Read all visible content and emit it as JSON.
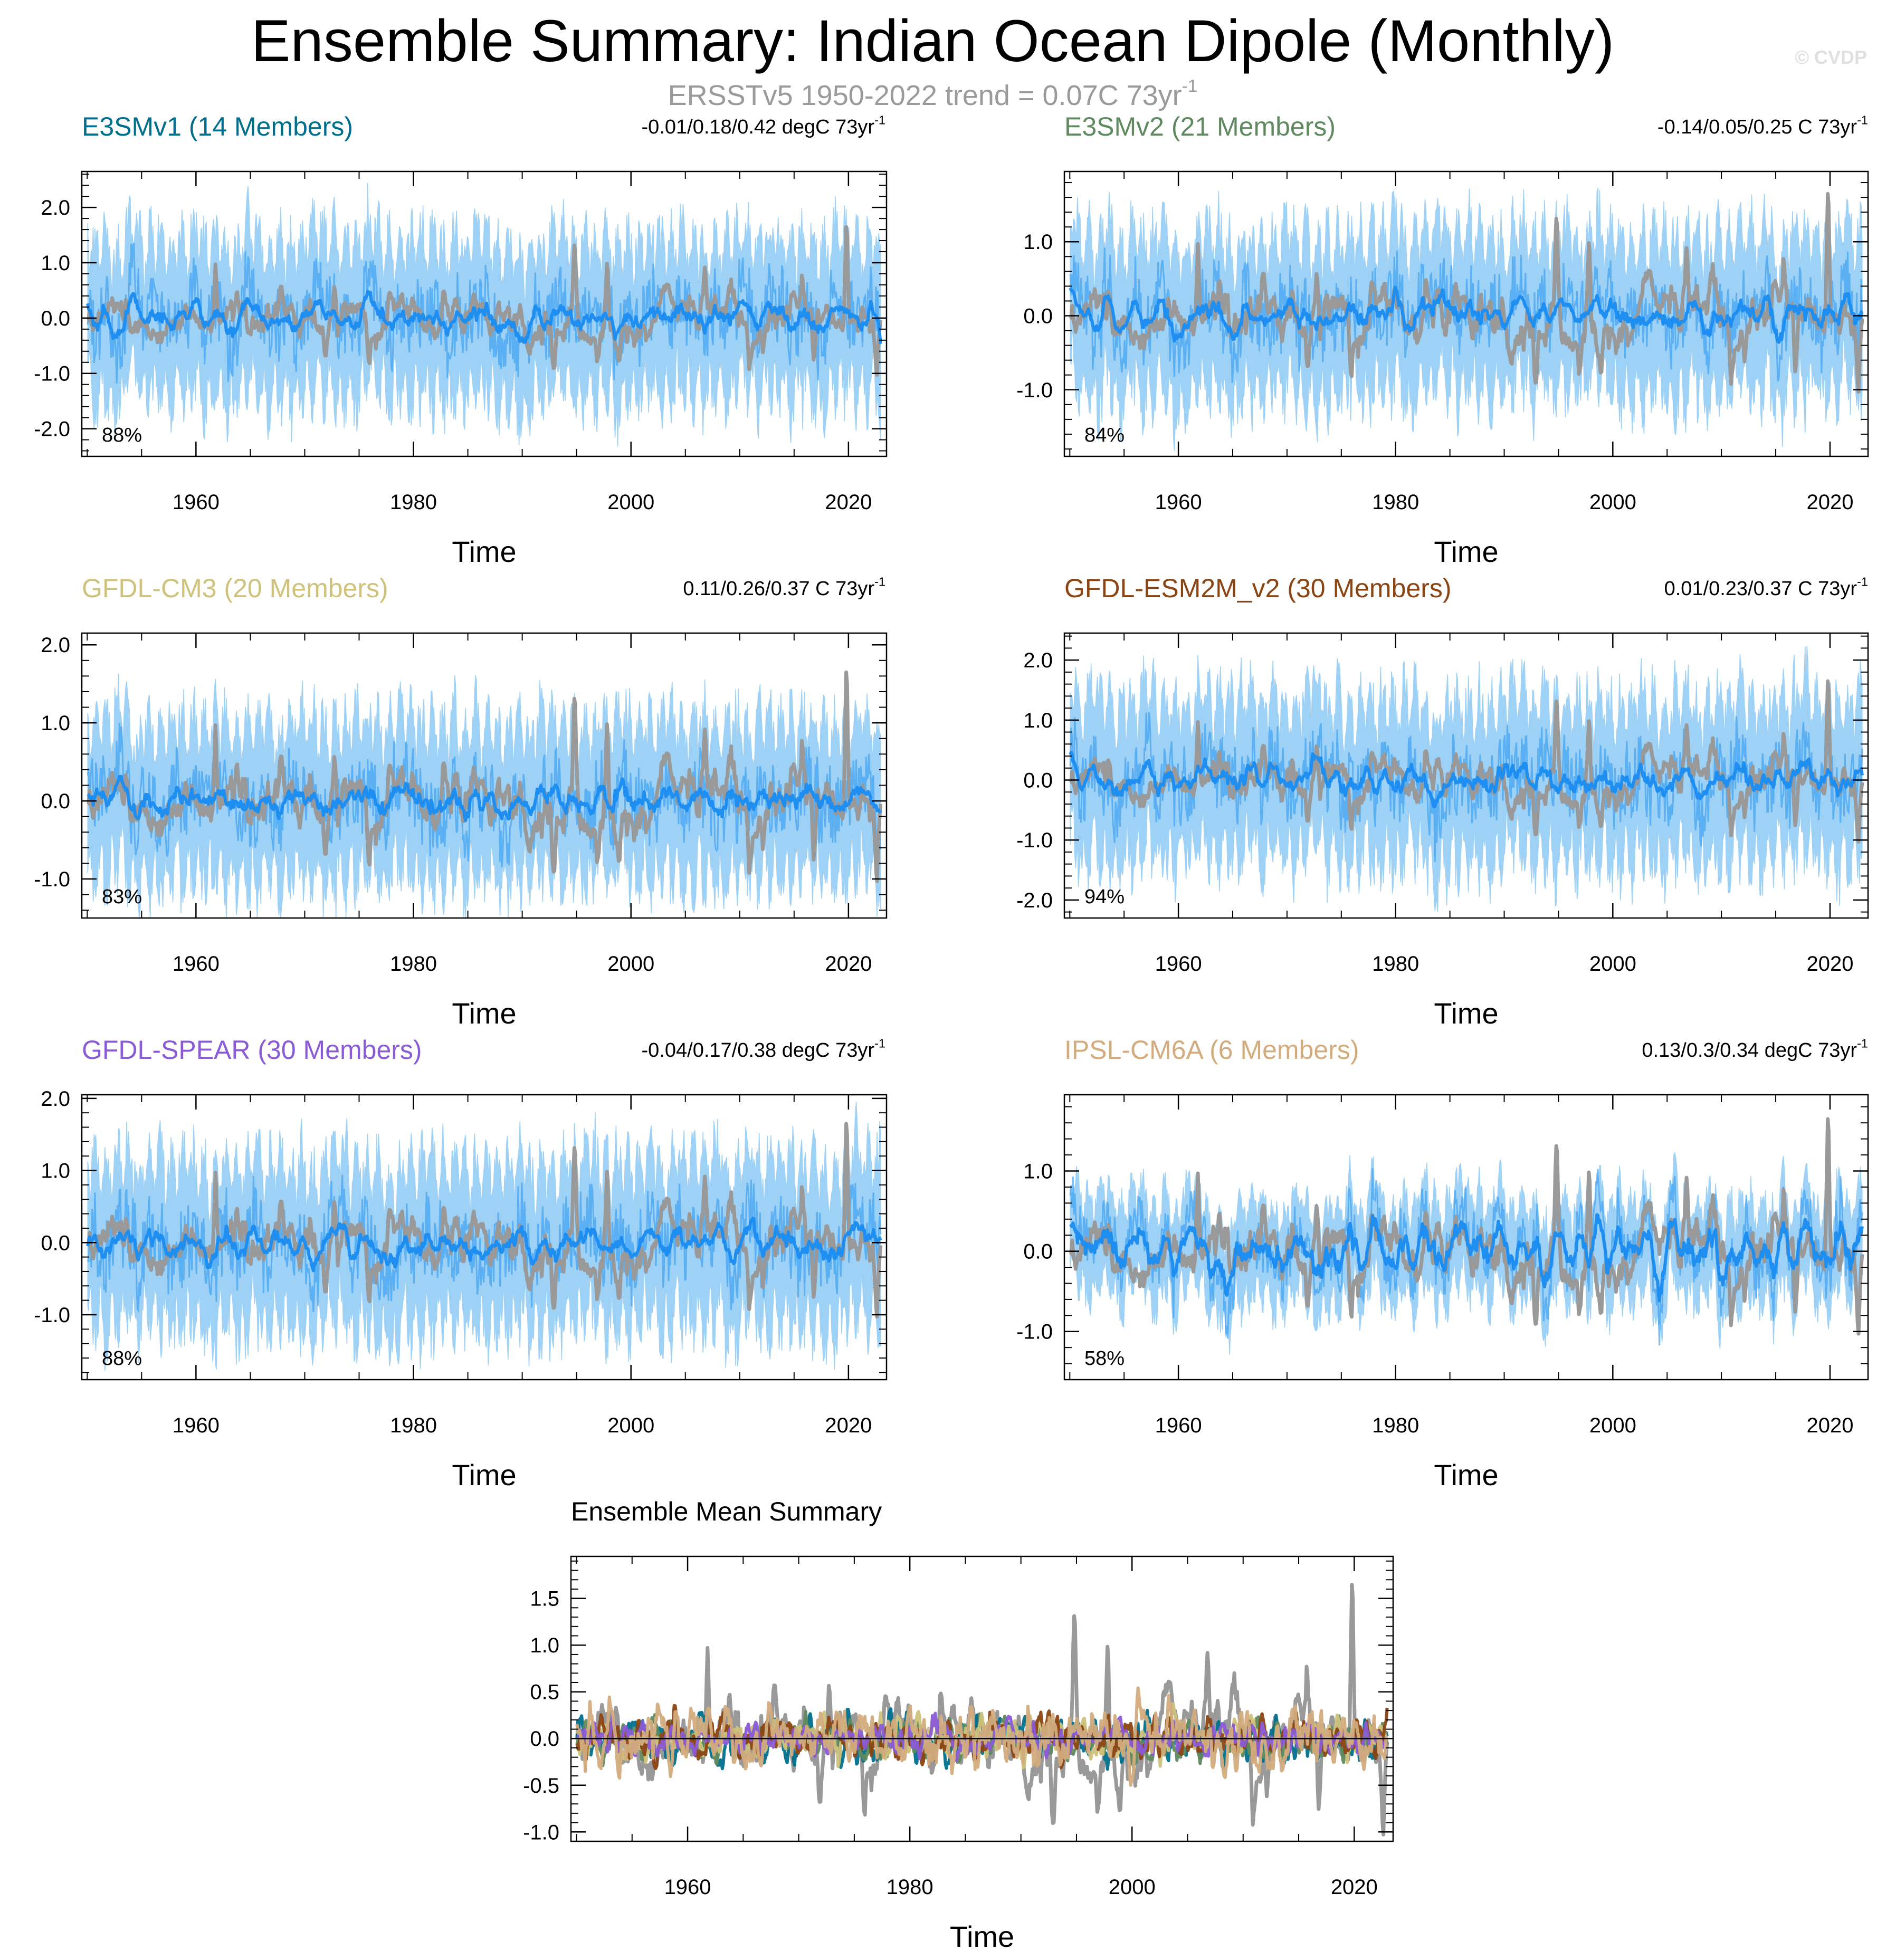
{
  "title": "Ensemble Summary: Indian Ocean Dipole (Monthly)",
  "subtitle": {
    "text": "ERSSTv5 1950-2022 trend = 0.07C 73yr",
    "superscript": "-1"
  },
  "watermark": "© CVDP",
  "colors": {
    "observations": "#999999",
    "ensemble_mean": "#1f8ef1",
    "ensemble_spread": "#8ec9f5",
    "e3smv1": "#006f8d",
    "e3smv2": "#5f8a5f",
    "gfdl_cm3": "#cfc27c",
    "gfdl_esm2m_v2": "#8b4513",
    "gfdl_spear": "#8a5bd6",
    "ipsl_cm6a": "#d2ac7d"
  },
  "chart_data": [
    {
      "type": "line",
      "id": "e3smv1",
      "title": "E3SMv1 (14 Members)",
      "title_color": "#006f8d",
      "trend_label": "-0.01/0.18/0.42 degC 73yr",
      "trend_sup": "-1",
      "xlabel": "Time",
      "ylabel": "",
      "xlim": [
        1949.5,
        2023.5
      ],
      "ylim": [
        -2.5,
        2.65
      ],
      "xticks": [
        1960,
        1980,
        2000,
        2020
      ],
      "yticks": [
        -2.0,
        -1.0,
        0.0,
        1.0,
        2.0
      ],
      "ytick_labels": [
        "-2.0",
        "-1.0",
        "0.0",
        "1.0",
        "2.0"
      ],
      "percent_label": "88%",
      "spread_amplitude": 2.1,
      "mean_amplitude": 0.3,
      "series": [
        {
          "name": "ERSSTv5 observations",
          "color": "#999999",
          "role": "obs"
        },
        {
          "name": "Ensemble spread",
          "color": "#8ec9f5",
          "role": "spread"
        },
        {
          "name": "Ensemble mean",
          "color": "#1f8ef1",
          "role": "mean"
        }
      ]
    },
    {
      "type": "line",
      "id": "e3smv2",
      "title": "E3SMv2 (21 Members)",
      "title_color": "#5f8a5f",
      "trend_label": "-0.14/0.05/0.25 C 73yr",
      "trend_sup": "-1",
      "xlabel": "Time",
      "ylabel": "",
      "xlim": [
        1949.5,
        2023.5
      ],
      "ylim": [
        -1.9,
        1.95
      ],
      "xticks": [
        1960,
        1980,
        2000,
        2020
      ],
      "yticks": [
        -1.0,
        0.0,
        1.0
      ],
      "ytick_labels": [
        "-1.0",
        "0.0",
        "1.0"
      ],
      "percent_label": "84%",
      "spread_amplitude": 1.6,
      "mean_amplitude": 0.25,
      "series": [
        {
          "name": "ERSSTv5 observations",
          "color": "#999999",
          "role": "obs"
        },
        {
          "name": "Ensemble spread",
          "color": "#8ec9f5",
          "role": "spread"
        },
        {
          "name": "Ensemble mean",
          "color": "#1f8ef1",
          "role": "mean"
        }
      ]
    },
    {
      "type": "line",
      "id": "gfdl_cm3",
      "title": "GFDL-CM3 (20 Members)",
      "title_color": "#cfc27c",
      "trend_label": "0.11/0.26/0.37 C 73yr",
      "trend_sup": "-1",
      "xlabel": "Time",
      "ylabel": "",
      "xlim": [
        1949.5,
        2023.5
      ],
      "ylim": [
        -1.5,
        2.15
      ],
      "xticks": [
        1960,
        1980,
        2000,
        2020
      ],
      "yticks": [
        -1.0,
        0.0,
        1.0,
        2.0
      ],
      "ytick_labels": [
        "-1.0",
        "0.0",
        "1.0",
        "2.0"
      ],
      "percent_label": "83%",
      "spread_amplitude": 1.5,
      "mean_amplitude": 0.25,
      "series": [
        {
          "name": "ERSSTv5 observations",
          "color": "#999999",
          "role": "obs"
        },
        {
          "name": "Ensemble spread",
          "color": "#8ec9f5",
          "role": "spread"
        },
        {
          "name": "Ensemble mean",
          "color": "#1f8ef1",
          "role": "mean"
        }
      ]
    },
    {
      "type": "line",
      "id": "gfdl_esm2m_v2",
      "title": "GFDL-ESM2M_v2 (30 Members)",
      "title_color": "#8b4513",
      "trend_label": "0.01/0.23/0.37 C 73yr",
      "trend_sup": "-1",
      "xlabel": "Time",
      "ylabel": "",
      "xlim": [
        1949.5,
        2023.5
      ],
      "ylim": [
        -2.3,
        2.45
      ],
      "xticks": [
        1960,
        1980,
        2000,
        2020
      ],
      "yticks": [
        -2.0,
        -1.0,
        0.0,
        1.0,
        2.0
      ],
      "ytick_labels": [
        "-2.0",
        "-1.0",
        "0.0",
        "1.0",
        "2.0"
      ],
      "percent_label": "94%",
      "spread_amplitude": 2.0,
      "mean_amplitude": 0.3,
      "series": [
        {
          "name": "ERSSTv5 observations",
          "color": "#999999",
          "role": "obs"
        },
        {
          "name": "Ensemble spread",
          "color": "#8ec9f5",
          "role": "spread"
        },
        {
          "name": "Ensemble mean",
          "color": "#1f8ef1",
          "role": "mean"
        }
      ]
    },
    {
      "type": "line",
      "id": "gfdl_spear",
      "title": "GFDL-SPEAR (30 Members)",
      "title_color": "#8a5bd6",
      "trend_label": "-0.04/0.17/0.38 degC 73yr",
      "trend_sup": "-1",
      "xlabel": "Time",
      "ylabel": "",
      "xlim": [
        1949.5,
        2023.5
      ],
      "ylim": [
        -1.9,
        2.05
      ],
      "xticks": [
        1960,
        1980,
        2000,
        2020
      ],
      "yticks": [
        -1.0,
        0.0,
        1.0,
        2.0
      ],
      "ytick_labels": [
        "-1.0",
        "0.0",
        "1.0",
        "2.0"
      ],
      "percent_label": "88%",
      "spread_amplitude": 1.7,
      "mean_amplitude": 0.25,
      "series": [
        {
          "name": "ERSSTv5 observations",
          "color": "#999999",
          "role": "obs"
        },
        {
          "name": "Ensemble spread",
          "color": "#8ec9f5",
          "role": "spread"
        },
        {
          "name": "Ensemble mean",
          "color": "#1f8ef1",
          "role": "mean"
        }
      ]
    },
    {
      "type": "line",
      "id": "ipsl_cm6a",
      "title": "IPSL-CM6A (6 Members)",
      "title_color": "#d2ac7d",
      "trend_label": "0.13/0.3/0.34 degC 73yr",
      "trend_sup": "-1",
      "xlabel": "Time",
      "ylabel": "",
      "xlim": [
        1949.5,
        2023.5
      ],
      "ylim": [
        -1.6,
        1.95
      ],
      "xticks": [
        1960,
        1980,
        2000,
        2020
      ],
      "yticks": [
        -1.0,
        0.0,
        1.0
      ],
      "ytick_labels": [
        "-1.0",
        "0.0",
        "1.0"
      ],
      "percent_label": "58%",
      "spread_amplitude": 0.9,
      "mean_amplitude": 0.35,
      "series": [
        {
          "name": "ERSSTv5 observations",
          "color": "#999999",
          "role": "obs"
        },
        {
          "name": "Ensemble spread",
          "color": "#8ec9f5",
          "role": "spread"
        },
        {
          "name": "Ensemble mean",
          "color": "#1f8ef1",
          "role": "mean"
        }
      ]
    },
    {
      "type": "line",
      "id": "ensemble_mean_summary",
      "title": "Ensemble Mean Summary",
      "title_color": "#000000",
      "xlabel": "Time",
      "ylabel": "",
      "xlim": [
        1949.5,
        2023.5
      ],
      "ylim": [
        -1.1,
        1.95
      ],
      "xticks": [
        1960,
        1980,
        2000,
        2020
      ],
      "yticks": [
        -1.0,
        -0.5,
        0.0,
        0.5,
        1.0,
        1.5
      ],
      "ytick_labels": [
        "-1.0",
        "-0.5",
        "0.0",
        "0.5",
        "1.0",
        "1.5"
      ],
      "series": [
        {
          "name": "ERSSTv5",
          "color": "#999999",
          "role": "obs"
        },
        {
          "name": "E3SMv1",
          "color": "#006f8d",
          "role": "model",
          "amplitude": 0.22
        },
        {
          "name": "E3SMv2",
          "color": "#5f8a5f",
          "role": "model",
          "amplitude": 0.18
        },
        {
          "name": "GFDL-CM3",
          "color": "#cfc27c",
          "role": "model",
          "amplitude": 0.2
        },
        {
          "name": "GFDL-ESM2M_v2",
          "color": "#8b4513",
          "role": "model",
          "amplitude": 0.2
        },
        {
          "name": "GFDL-SPEAR",
          "color": "#8a5bd6",
          "role": "model",
          "amplitude": 0.16
        },
        {
          "name": "IPSL-CM6A",
          "color": "#d2ac7d",
          "role": "model",
          "amplitude": 0.3
        }
      ]
    }
  ]
}
